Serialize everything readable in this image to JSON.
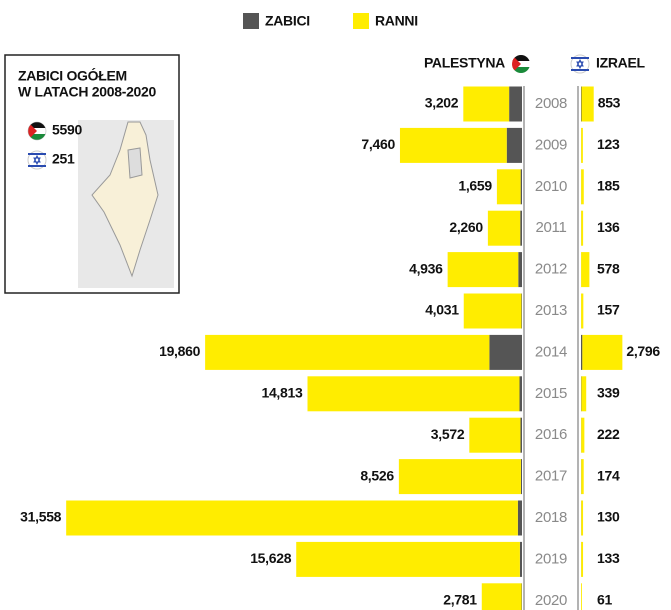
{
  "chart_data": {
    "type": "butterfly-bar",
    "legend": [
      {
        "name": "ZABICI",
        "color": "#555555"
      },
      {
        "name": "RANNI",
        "color": "#ffed00"
      }
    ],
    "categories": [
      "2008",
      "2009",
      "2010",
      "2011",
      "2012",
      "2013",
      "2014",
      "2015",
      "2016",
      "2017",
      "2018",
      "2019",
      "2020"
    ],
    "xlim": [
      0,
      32000
    ],
    "sides": [
      {
        "name": "PALESTYNA",
        "series": [
          {
            "values": [
              899,
              1066,
              95,
              124,
              260,
              39,
              2280,
              174,
              109,
              77,
              290,
              147,
              30
            ]
          },
          {
            "values": [
              3202,
              7460,
              1659,
              2260,
              4936,
              4031,
              19860,
              14813,
              3572,
              8526,
              31558,
              15628,
              2781
            ],
            "value_labels": [
              "3,202",
              "7,460",
              "1,659",
              "2,260",
              "4,936",
              "4,031",
              "19,860",
              "14,813",
              "3,572",
              "8,526",
              "31,558",
              "15,628",
              "2,781"
            ]
          }
        ]
      },
      {
        "name": "IZRAEL",
        "series": [
          {
            "values": [
              35,
              9,
              9,
              11,
              7,
              6,
              94,
              25,
              13,
              15,
              14,
              10,
              3
            ]
          },
          {
            "values": [
              853,
              123,
              185,
              136,
              578,
              157,
              2796,
              339,
              222,
              174,
              130,
              133,
              61
            ],
            "value_labels": [
              "853",
              "123",
              "185",
              "136",
              "578",
              "157",
              "2,796",
              "339",
              "222",
              "174",
              "130",
              "133",
              "61"
            ]
          }
        ]
      }
    ],
    "inset": {
      "title_lines": [
        "ZABICI OGÓŁEM",
        "W LATACH 2008-2020"
      ],
      "palestine_total": 5590,
      "israel_total": 251
    }
  }
}
